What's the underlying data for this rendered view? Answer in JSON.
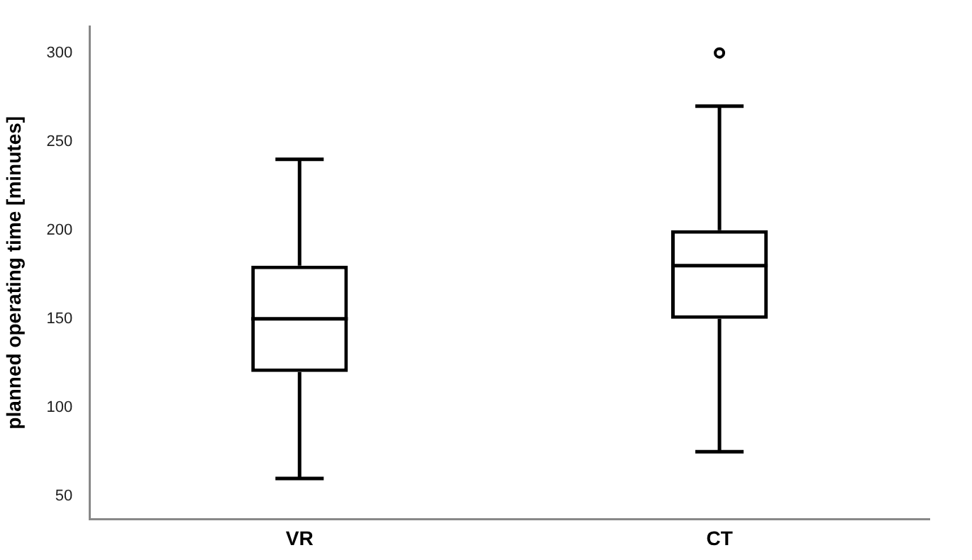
{
  "chart_data": {
    "type": "box",
    "ylabel": "planned operating time [minutes]",
    "categories": [
      "VR",
      "CT"
    ],
    "color": "#000000",
    "boxes": [
      {
        "low": 60,
        "q1": 120,
        "median": 150,
        "q3": 180,
        "high": 240
      },
      {
        "low": 75,
        "q1": 150,
        "median": 180,
        "q3": 200,
        "high": 270,
        "outliers": [
          300
        ]
      }
    ],
    "ylim": [
      37,
      315
    ],
    "yticks": [
      50,
      100,
      150,
      200,
      250,
      300
    ],
    "grid": false
  }
}
